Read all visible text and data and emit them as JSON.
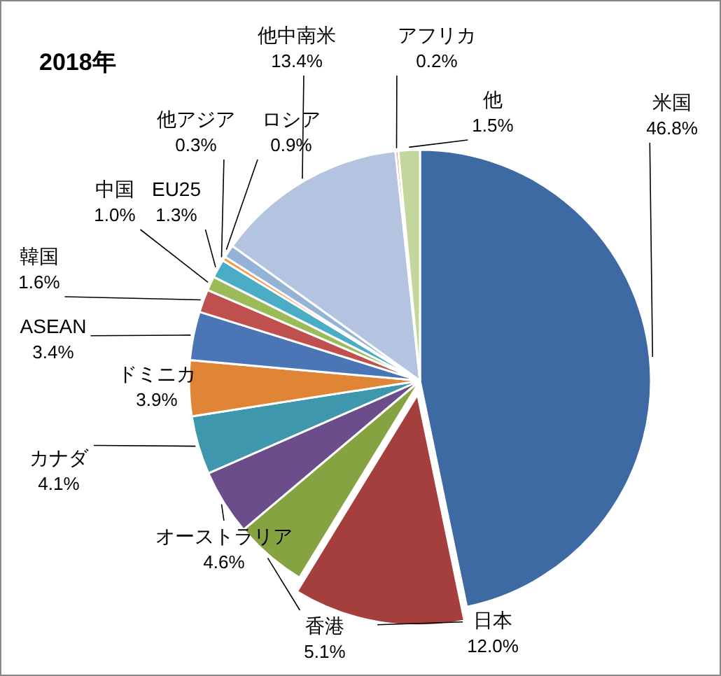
{
  "chart_data": {
    "type": "pie",
    "title": "2018年",
    "categories": [
      "米国",
      "日本",
      "香港",
      "オーストラリア",
      "カナダ",
      "ドミニカ",
      "ASEAN",
      "韓国",
      "中国",
      "EU25",
      "他アジア",
      "ロシア",
      "他中南米",
      "アフリカ",
      "他"
    ],
    "values": [
      46.8,
      12.0,
      5.1,
      4.6,
      4.1,
      3.9,
      3.4,
      1.6,
      1.0,
      1.3,
      0.3,
      0.9,
      13.4,
      0.2,
      1.5
    ],
    "colors": [
      "#3e6aa3",
      "#a53f3d",
      "#86a341",
      "#6a4d8a",
      "#3f97ad",
      "#e08436",
      "#4a76b5",
      "#c0504d",
      "#9bbb59",
      "#4bacc6",
      "#f79646",
      "#95b3d7",
      "#b3c3e0",
      "#d99694",
      "#c3d69b"
    ],
    "value_labels": [
      "46.8%",
      "12.0%",
      "5.1%",
      "4.6%",
      "4.1%",
      "3.9%",
      "3.4%",
      "1.6%",
      "1.0%",
      "1.3%",
      "0.3%",
      "0.9%",
      "13.4%",
      "0.2%",
      "1.5%"
    ]
  }
}
